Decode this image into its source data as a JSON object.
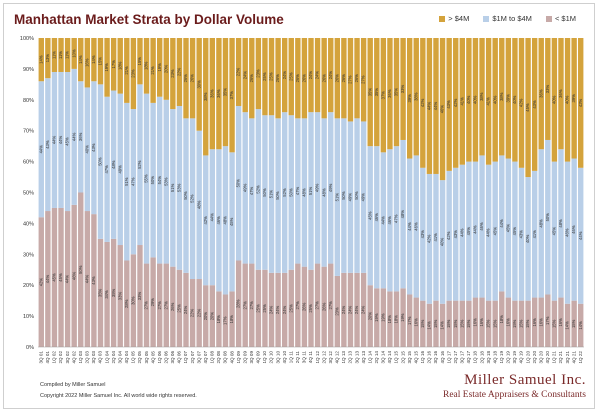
{
  "page": {
    "title": "Manhattan Market Strata by Dollar Volume",
    "footer_compiled": "Compiled by Miller Samuel",
    "footer_copyright": "Copyright 2022 Miller Samuel Inc. All world wide rights reserved.",
    "brand_name": "Miller Samuel Inc.",
    "brand_tagline": "Real Estate Appraisers & Consultants"
  },
  "legend": [
    {
      "label": "> $4M",
      "color": "#d4a33c"
    },
    {
      "label": "$1M to $4M",
      "color": "#b9cfe8"
    },
    {
      "label": "< $1M",
      "color": "#c7aaa8"
    }
  ],
  "chart_data": {
    "type": "bar",
    "stacked": true,
    "ylim": [
      0,
      100
    ],
    "yticks": [
      "0%",
      "10%",
      "20%",
      "30%",
      "40%",
      "50%",
      "60%",
      "70%",
      "80%",
      "90%",
      "100%"
    ],
    "grid": false,
    "legend_position": "top-right",
    "categories": [
      "3Q 01",
      "4Q 01",
      "1Q 02",
      "2Q 02",
      "3Q 02",
      "4Q 02",
      "1Q 03",
      "2Q 03",
      "3Q 03",
      "4Q 03",
      "1Q 04",
      "2Q 04",
      "3Q 04",
      "4Q 04",
      "1Q 05",
      "2Q 05",
      "3Q 05",
      "4Q 05",
      "1Q 06",
      "2Q 06",
      "3Q 06",
      "4Q 06",
      "1Q 07",
      "2Q 07",
      "3Q 07",
      "4Q 07",
      "1Q 08",
      "2Q 08",
      "3Q 08",
      "4Q 08",
      "1Q 09",
      "2Q 09",
      "3Q 09",
      "4Q 09",
      "1Q 10",
      "2Q 10",
      "3Q 10",
      "4Q 10",
      "1Q 11",
      "2Q 11",
      "3Q 11",
      "4Q 11",
      "1Q 12",
      "2Q 12",
      "3Q 12",
      "4Q 12",
      "1Q 13",
      "2Q 13",
      "3Q 13",
      "4Q 13",
      "1Q 14",
      "2Q 14",
      "3Q 14",
      "4Q 14",
      "1Q 15",
      "2Q 15",
      "3Q 15",
      "4Q 15",
      "1Q 16",
      "2Q 16",
      "3Q 16",
      "4Q 16",
      "1Q 17",
      "2Q 17",
      "3Q 17",
      "4Q 17",
      "1Q 18",
      "2Q 18",
      "3Q 18",
      "4Q 18",
      "1Q 19",
      "2Q 19",
      "3Q 19",
      "4Q 19",
      "1Q 20",
      "2Q 20",
      "3Q 20",
      "4Q 20",
      "1Q 21",
      "2Q 21",
      "3Q 21",
      "4Q 21",
      "1Q 22"
    ],
    "series": [
      {
        "name": "< $1M",
        "values": [
          42,
          44,
          45,
          45,
          44,
          46,
          50,
          44,
          43,
          35,
          34,
          35,
          33,
          28,
          30,
          33,
          27,
          29,
          27,
          27,
          26,
          25,
          24,
          22,
          22,
          20,
          20,
          18,
          17,
          18,
          28,
          27,
          27,
          25,
          25,
          24,
          24,
          24,
          25,
          27,
          26,
          25,
          27,
          26,
          27,
          23,
          24,
          24,
          24,
          24,
          20,
          19,
          19,
          18,
          18,
          19,
          17,
          16,
          15,
          14,
          15,
          14,
          15,
          15,
          15,
          15,
          16,
          16,
          15,
          15,
          18,
          16,
          15,
          15,
          15,
          16,
          16,
          17,
          15,
          16,
          14,
          15,
          14
        ]
      },
      {
        "name": "$1M to $4M",
        "values": [
          44,
          43,
          44,
          44,
          45,
          44,
          36,
          40,
          43,
          50,
          47,
          48,
          49,
          51,
          47,
          52,
          55,
          50,
          54,
          53,
          51,
          53,
          50,
          52,
          48,
          42,
          44,
          46,
          48,
          45,
          50,
          49,
          47,
          52,
          50,
          51,
          50,
          52,
          50,
          47,
          48,
          51,
          49,
          48,
          49,
          51,
          50,
          49,
          50,
          49,
          45,
          46,
          44,
          46,
          47,
          48,
          44,
          46,
          43,
          42,
          41,
          40,
          42,
          43,
          44,
          45,
          44,
          46,
          44,
          45,
          44,
          45,
          45,
          43,
          40,
          41,
          48,
          50,
          45,
          48,
          46,
          46,
          44
        ]
      },
      {
        "name": "> $4M",
        "values": [
          14,
          13,
          11,
          11,
          11,
          10,
          14,
          16,
          14,
          15,
          19,
          17,
          18,
          21,
          23,
          15,
          18,
          21,
          19,
          20,
          23,
          22,
          26,
          26,
          30,
          38,
          36,
          36,
          35,
          37,
          22,
          24,
          26,
          23,
          25,
          25,
          26,
          24,
          25,
          26,
          26,
          24,
          24,
          26,
          24,
          26,
          26,
          27,
          26,
          27,
          35,
          35,
          37,
          36,
          35,
          33,
          39,
          38,
          42,
          44,
          44,
          46,
          43,
          42,
          41,
          40,
          40,
          38,
          41,
          40,
          38,
          39,
          40,
          42,
          45,
          43,
          36,
          33,
          40,
          36,
          40,
          39,
          42
        ]
      }
    ]
  }
}
